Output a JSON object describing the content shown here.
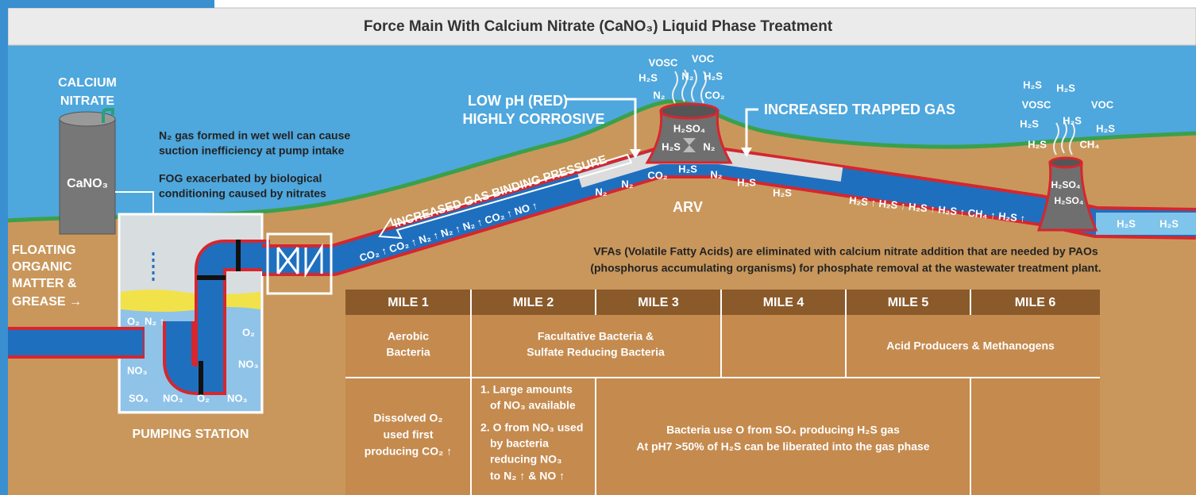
{
  "title": "Force Main With Calcium Nitrate (CaNO₃) Liquid Phase Treatment",
  "tank": {
    "label": [
      "CALCIUM",
      "NITRATE"
    ],
    "chemical": "CaNO₃"
  },
  "notes": [
    [
      "N₂ gas formed in wet well can cause",
      "suction inefficiency at pump intake"
    ],
    [
      "FOG exacerbated by biological",
      "conditioning caused by nitrates"
    ]
  ],
  "grease_label": [
    "FLOATING",
    "ORGANIC",
    "MATTER &",
    "GREASE →"
  ],
  "pumping_station": {
    "label": "PUMPING STATION",
    "chemicals": [
      "O₂",
      "N₂ ↑",
      "O₂",
      "NO₃",
      "NO₃",
      "SO₄",
      "NO₃",
      "O₂",
      "NO₃"
    ]
  },
  "low_ph": [
    "LOW pH (RED)",
    "HIGHLY CORROSIVE"
  ],
  "trapped_gas": "INCREASED TRAPPED GAS",
  "gas_binding": "INCREASED GAS BINDING PRESSURE",
  "arv": {
    "label": "ARV",
    "inside": [
      "H₂SO₄",
      "H₂S",
      "N₂"
    ],
    "vapors": [
      "VOSC",
      "VOC",
      "H₂S",
      "N₂",
      "H₂S",
      "N₂",
      "CO₂"
    ]
  },
  "uphill_pipe": "CO₂ ↑ CO₂ ↑ N₂ ↑ N₂ ↑ N₂ ↑ CO₂ ↑ NO ↑",
  "trapped_gases": [
    "N₂",
    "N₂",
    "CO₂",
    "H₂S",
    "N₂",
    "H₂S",
    "H₂S"
  ],
  "downhill_pipe": "H₂S ↑ H₂S ↑ H₂S ↑ H₂S ↑ CH₄ ↑ H₂S ↑",
  "vent": {
    "inside": [
      "H₂SO₄",
      "H₂SO₄"
    ],
    "vapors": [
      "H₂S",
      "H₂S",
      "VOSC",
      "VOC",
      "H₂S",
      "H₂S",
      "H₂S",
      "H₂S",
      "CH₄"
    ]
  },
  "outlet_pipe": [
    "H₂S",
    "H₂S"
  ],
  "vfa_note": [
    "VFAs (Volatile Fatty Acids) are eliminated with calcium nitrate addition that are needed by PAOs",
    "(phosphorus accumulating organisms) for phosphate removal at the wastewater treatment plant."
  ],
  "table": {
    "header": [
      "MILE 1",
      "MILE 2",
      "MILE 3",
      "MILE 4",
      "MILE 5",
      "MILE 6"
    ],
    "rows": [
      [
        [
          "Aerobic",
          "Bacteria"
        ],
        [
          "Facultative Bacteria &",
          "Sulfate Reducing Bacteria"
        ],
        [
          "Acid Producers & Methanogens"
        ]
      ],
      [
        [
          "Dissolved O₂",
          "used first",
          "producing CO₂ ↑"
        ],
        [
          "1. Large amounts",
          "of NO₃ available",
          "2. O from NO₃ used",
          "by bacteria",
          "reducing NO₃",
          "to N₂ ↑ & NO ↑"
        ],
        [
          "Bacteria use O from SO₄ producing H₂S gas",
          "At pH7 >50% of H₂S can be liberated into the gas phase"
        ]
      ]
    ]
  }
}
